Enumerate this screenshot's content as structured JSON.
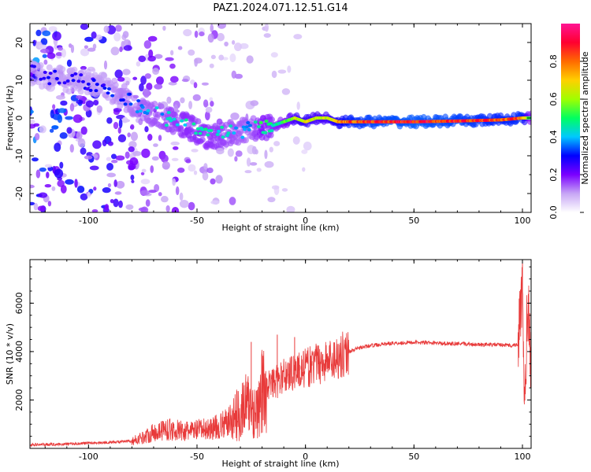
{
  "title": "PAZ1.2024.071.12.51.G14",
  "colorbar": {
    "label": "Normalized spectral amplitude",
    "ticks": [
      0.0,
      0.2,
      0.4,
      0.6,
      0.8
    ],
    "tick_labels": [
      "0.0",
      "0.2",
      "0.4",
      "0.6",
      "0.8"
    ],
    "colormap": [
      "#ffffff",
      "#c7a6f5",
      "#7a00ff",
      "#0000ff",
      "#00c8ff",
      "#00ff60",
      "#a0ff00",
      "#ffd000",
      "#ff6a00",
      "#ff0030",
      "#ff1493"
    ]
  },
  "chart_data": [
    {
      "type": "heatmap",
      "xlabel": "Height of straight line (km)",
      "ylabel": "Frequency (Hz)",
      "xlim": [
        -127,
        104
      ],
      "ylim": [
        -25,
        25
      ],
      "xticks": [
        -100,
        -50,
        0,
        50,
        100
      ],
      "xtick_labels": [
        "-100",
        "-50",
        "0",
        "50",
        "100"
      ],
      "yticks": [
        -20,
        -10,
        0,
        10,
        20
      ],
      "ytick_labels": [
        "-20",
        "-10",
        "0",
        "10",
        "20"
      ],
      "ridge": {
        "description_values": "frequency of peak spectral amplitude vs height",
        "x": [
          -127,
          -110,
          -95,
          -85,
          -75,
          -65,
          -55,
          -45,
          -35,
          -25,
          -20,
          -15,
          -10,
          -5,
          0,
          5,
          10,
          15,
          20,
          30,
          50,
          70,
          90,
          100,
          104
        ],
        "y": [
          12,
          10,
          9,
          6,
          2,
          0,
          -2,
          -5,
          -4,
          -3,
          -3,
          -2,
          -1,
          0,
          -1,
          0,
          0,
          -1,
          -1,
          -1,
          -1,
          -0.8,
          -0.5,
          0,
          0
        ],
        "amplitude": [
          0.3,
          0.3,
          0.3,
          0.35,
          0.4,
          0.45,
          0.5,
          0.5,
          0.45,
          0.4,
          0.55,
          0.5,
          0.55,
          0.7,
          0.75,
          0.7,
          0.7,
          0.8,
          0.9,
          0.95,
          0.98,
          0.95,
          0.9,
          0.92,
          0.5
        ]
      }
    },
    {
      "type": "line",
      "xlabel": "Height of straight line (km)",
      "ylabel": "SNR (10 * v/v)",
      "xlim": [
        -127,
        104
      ],
      "ylim": [
        0,
        7800
      ],
      "xticks": [
        -100,
        -50,
        0,
        50,
        100
      ],
      "xtick_labels": [
        "-100",
        "-50",
        "0",
        "50",
        "100"
      ],
      "yticks": [
        2000,
        4000,
        6000
      ],
      "ytick_labels": [
        "2000",
        "4000",
        "6000"
      ],
      "color": "#e83a3a",
      "series": [
        {
          "x": [
            -127,
            -110,
            -100,
            -90,
            -80,
            -75,
            -70,
            -65,
            -60,
            -55,
            -50,
            -45,
            -40,
            -35,
            -30,
            -28,
            -25,
            -22,
            -20,
            -18,
            -15,
            -12,
            -10,
            -5,
            0,
            5,
            10,
            15,
            20,
            25,
            30,
            35,
            40,
            50,
            60,
            70,
            80,
            90,
            95,
            98,
            100,
            101,
            102,
            103,
            104
          ],
          "y": [
            150,
            180,
            220,
            250,
            300,
            450,
            650,
            800,
            750,
            700,
            750,
            800,
            900,
            1100,
            1500,
            1800,
            1700,
            1400,
            2300,
            2600,
            2700,
            2800,
            3000,
            3200,
            3300,
            3500,
            3600,
            3800,
            4000,
            4150,
            4250,
            4300,
            4350,
            4380,
            4350,
            4320,
            4300,
            4280,
            4250,
            4300,
            6500,
            1200,
            5000,
            5800,
            3000
          ],
          "spike_x": [
            -25,
            -20,
            -21,
            -13,
            -5,
            -2,
            3,
            8,
            100
          ],
          "spike_y": [
            4400,
            3900,
            1500,
            4700,
            4600,
            3400,
            3600,
            3900,
            7700
          ]
        }
      ]
    }
  ]
}
